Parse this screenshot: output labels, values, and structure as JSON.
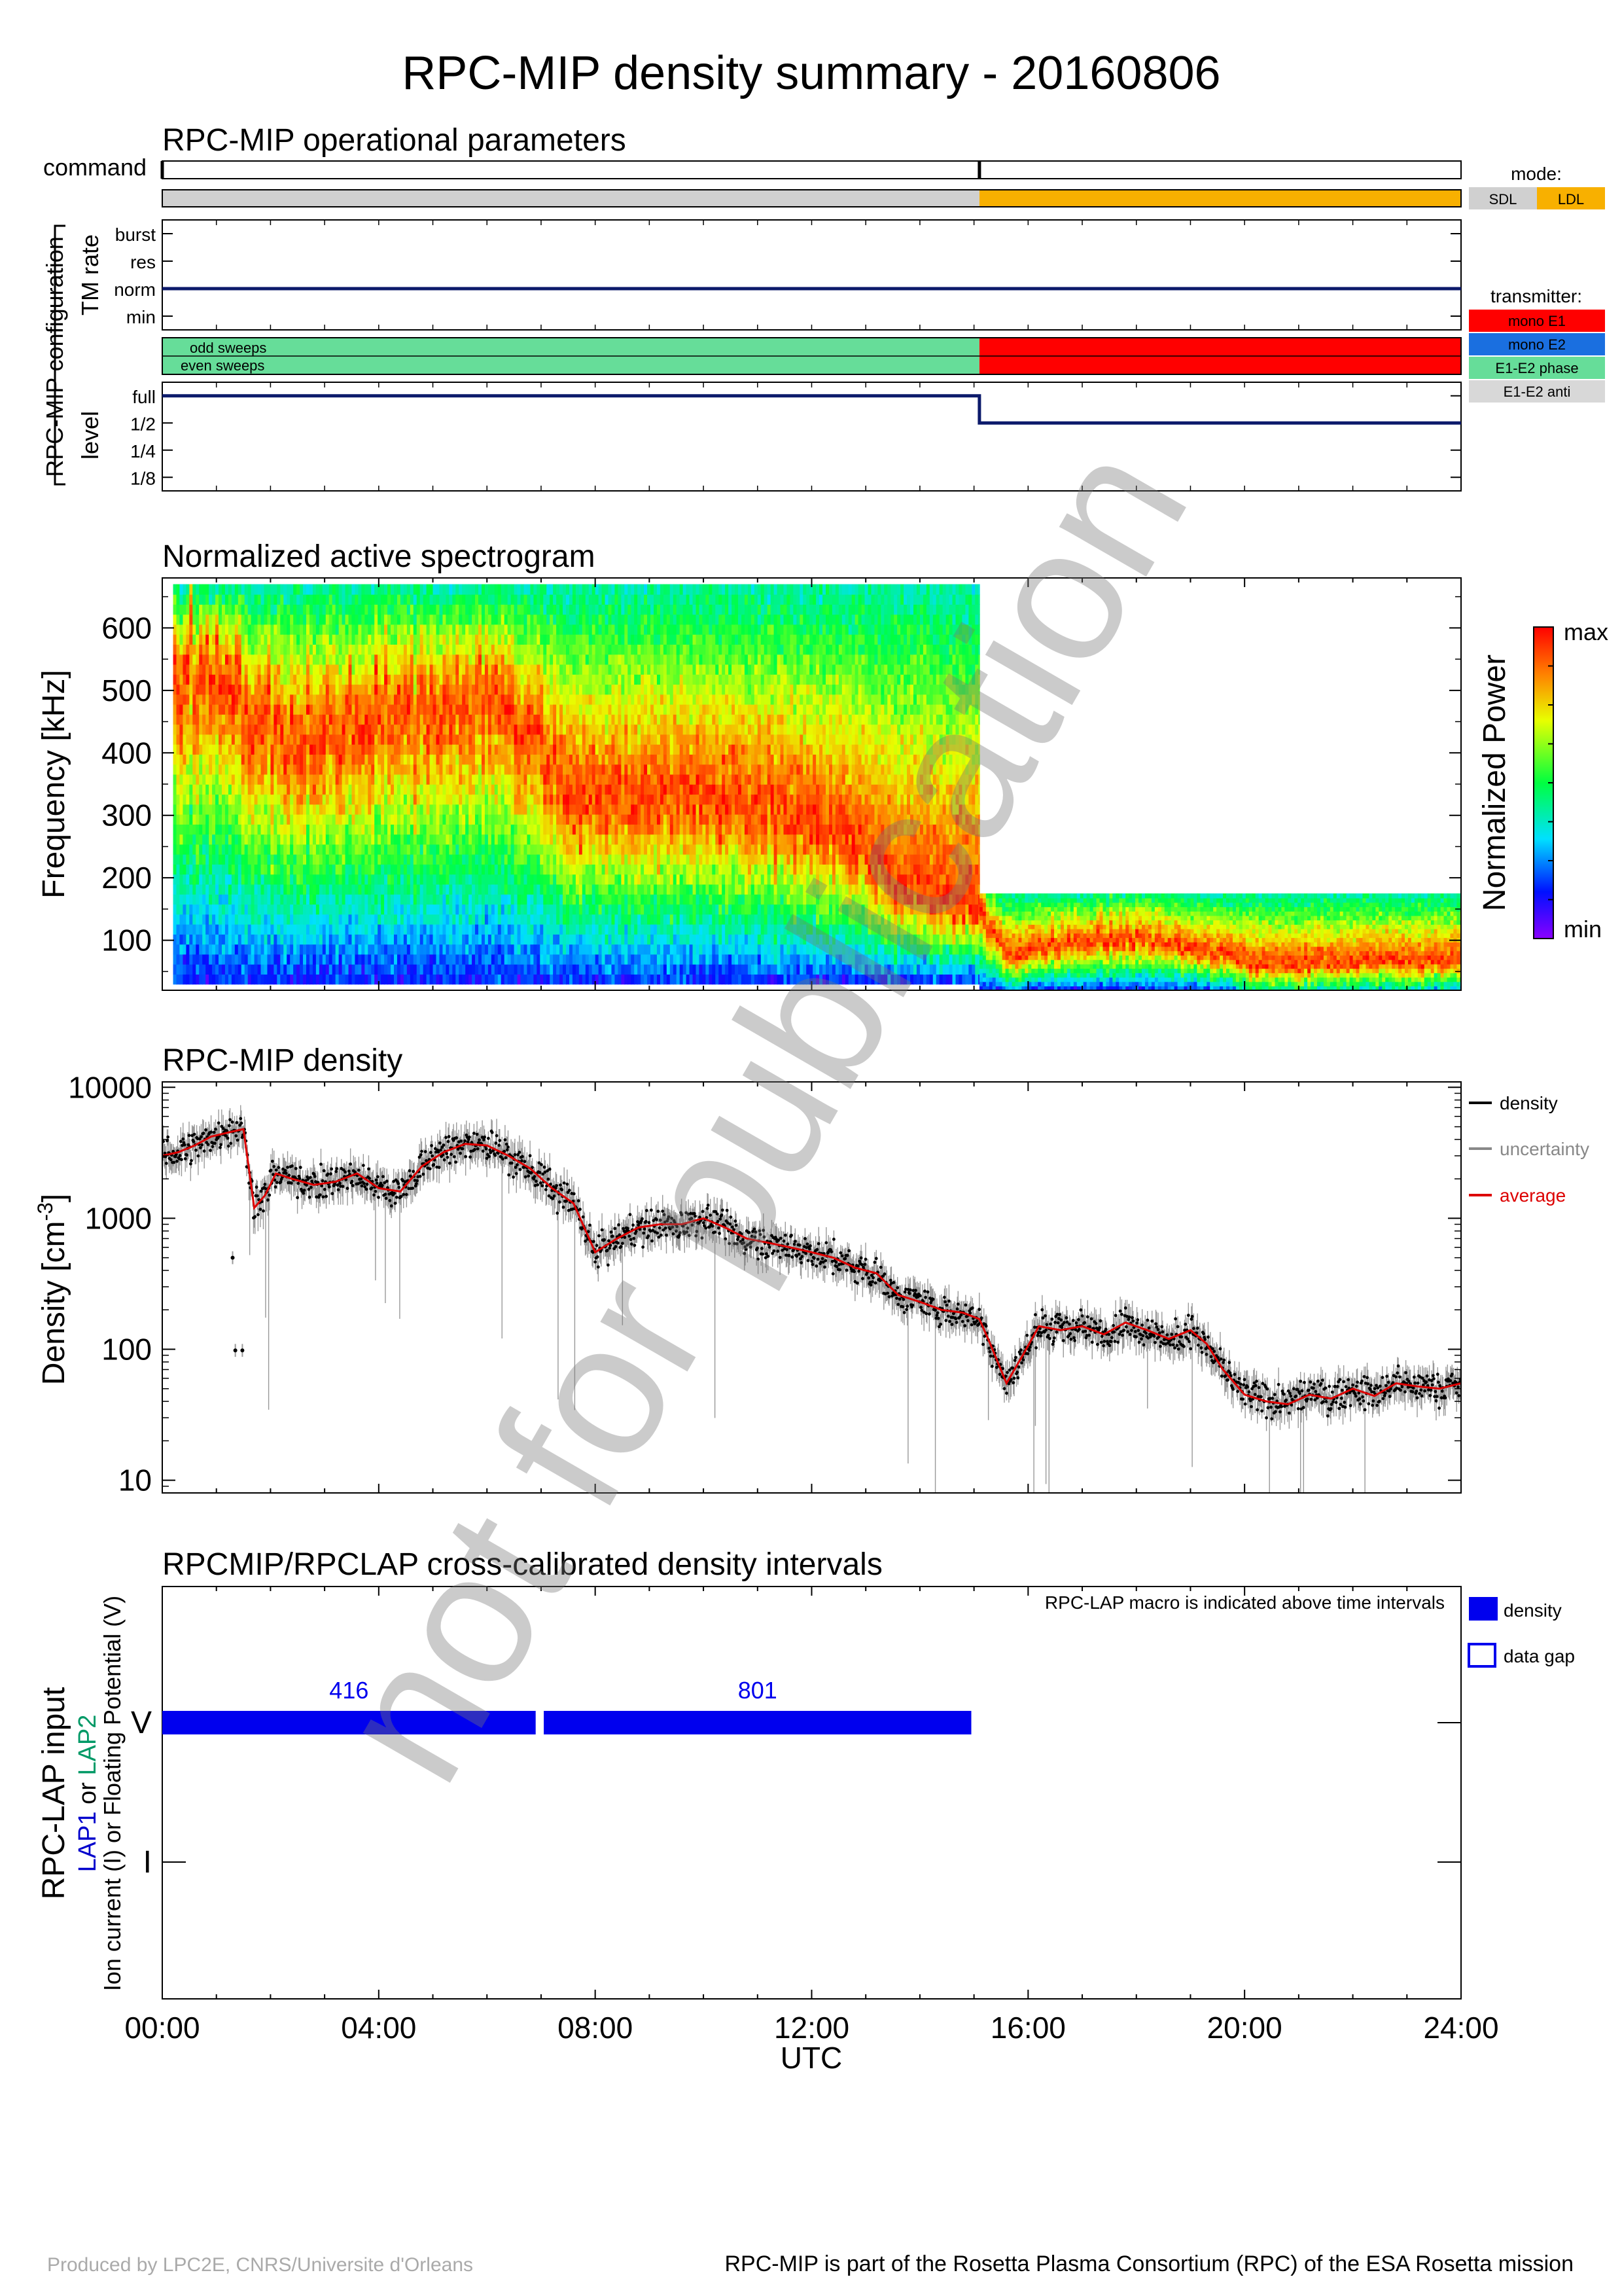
{
  "page": {
    "title": "RPC-MIP density summary - 20160806",
    "footer_left": "Produced by LPC2E, CNRS/Universite d'Orleans",
    "footer_right": "RPC-MIP is part of the Rosetta Plasma Consortium (RPC) of the ESA Rosetta mission",
    "watermark": "not for publication"
  },
  "time_axis": {
    "ticks": [
      "00:00",
      "04:00",
      "08:00",
      "12:00",
      "16:00",
      "20:00",
      "24:00"
    ],
    "label": "UTC",
    "range_hours": [
      0,
      24
    ]
  },
  "colors": {
    "navy": "#0c1a6b",
    "sdl": "#d0d0d0",
    "ldl": "#f8b000",
    "mono_e1": "#ff0000",
    "mono_e2": "#1a6fe0",
    "e1e2_phase": "#66dd99",
    "e1e2_anti": "#d8d8d8",
    "density_bar": "#0000ee",
    "average": "#dd0000",
    "uncertainty": "#888888",
    "lap1": "#0000cc",
    "lap2": "#009966"
  },
  "chart_data": [
    {
      "id": "operational",
      "type": "timeline",
      "title": "RPC-MIP operational parameters",
      "group_label": "RPC-MIP configuration",
      "command": {
        "label": "command",
        "change_times_hours": [
          0,
          15.1
        ]
      },
      "mode": {
        "legend_title": "mode:",
        "states": [
          "SDL",
          "LDL"
        ],
        "segments": [
          {
            "start": 0,
            "end": 15.1,
            "state": "SDL"
          },
          {
            "start": 15.1,
            "end": 24,
            "state": "LDL"
          }
        ]
      },
      "tm_rate": {
        "label": "TM rate",
        "levels": [
          "burst",
          "res",
          "norm",
          "min"
        ],
        "segments": [
          {
            "start": 0,
            "end": 24,
            "level": "norm"
          }
        ]
      },
      "transmitter": {
        "legend_title": "transmitter:",
        "states": [
          "mono E1",
          "mono E2",
          "E1-E2 phase",
          "E1-E2 anti"
        ],
        "rows": [
          "odd sweeps",
          "even sweeps"
        ],
        "segments": [
          {
            "start": 0,
            "end": 15.1,
            "state": "E1-E2 phase"
          },
          {
            "start": 15.1,
            "end": 24,
            "state": "mono E1"
          }
        ]
      },
      "level": {
        "label": "level",
        "levels": [
          "full",
          "1/2",
          "1/4",
          "1/8"
        ],
        "segments": [
          {
            "start": 0,
            "end": 15.1,
            "level": "full"
          },
          {
            "start": 15.1,
            "end": 24,
            "level": "1/2"
          }
        ]
      }
    },
    {
      "id": "spectrogram",
      "type": "heatmap",
      "title": "Normalized active spectrogram",
      "ylabel": "Frequency [kHz]",
      "yticks": [
        100,
        200,
        300,
        400,
        500,
        600
      ],
      "ylim": [
        20,
        680
      ],
      "colorbar": {
        "label": "Normalized Power",
        "max_label": "max",
        "min_label": "min"
      },
      "segments": [
        {
          "start": 0.2,
          "end": 15.1,
          "fmin": 30,
          "fmax": 670
        },
        {
          "start": 15.1,
          "end": 24,
          "fmin": 20,
          "fmax": 175
        }
      ],
      "dominant_line_khz": [
        [
          0,
          560
        ],
        [
          1,
          540
        ],
        [
          1.6,
          470
        ],
        [
          2.5,
          420
        ],
        [
          3.5,
          450
        ],
        [
          4.5,
          470
        ],
        [
          6,
          480
        ],
        [
          6.8,
          430
        ],
        [
          7.5,
          330
        ],
        [
          8.5,
          320
        ],
        [
          10,
          330
        ],
        [
          11.5,
          300
        ],
        [
          12.8,
          260
        ],
        [
          13.5,
          190
        ],
        [
          14.3,
          160
        ],
        [
          15.1,
          150
        ],
        [
          15.6,
          75
        ],
        [
          16.5,
          90
        ],
        [
          17.5,
          100
        ],
        [
          18.5,
          95
        ],
        [
          19.3,
          85
        ],
        [
          20,
          65
        ],
        [
          21,
          60
        ],
        [
          22,
          65
        ],
        [
          23,
          65
        ],
        [
          24,
          70
        ]
      ]
    },
    {
      "id": "density",
      "type": "line",
      "title": "RPC-MIP density",
      "ylabel": "Density [cm",
      "ylabel_sup": "-3",
      "ylabel_end": "]",
      "yscale": "log",
      "yticks": [
        10,
        100,
        1000,
        10000
      ],
      "yticks_labels": [
        "10",
        "100",
        "1000",
        "10000"
      ],
      "ylim": [
        8,
        11000
      ],
      "legend": [
        "density",
        "uncertainty",
        "average"
      ],
      "legend_position": "right",
      "average": {
        "x": [
          0,
          0.3,
          0.6,
          0.9,
          1.2,
          1.5,
          1.7,
          1.9,
          2.1,
          2.4,
          2.8,
          3.2,
          3.6,
          4,
          4.4,
          4.8,
          5.2,
          5.6,
          6,
          6.4,
          6.8,
          7.2,
          7.6,
          8,
          8.4,
          8.8,
          9.2,
          9.6,
          10,
          10.4,
          10.8,
          11.2,
          11.6,
          12,
          12.4,
          12.8,
          13.2,
          13.6,
          14,
          14.4,
          14.8,
          15.1,
          15.3,
          15.6,
          15.9,
          16.2,
          16.6,
          17,
          17.4,
          17.8,
          18.2,
          18.6,
          19,
          19.3,
          19.6,
          20,
          20.4,
          20.8,
          21.2,
          21.6,
          22,
          22.4,
          22.8,
          23.2,
          23.6,
          24
        ],
        "y": [
          3000,
          3200,
          3600,
          4200,
          4500,
          4800,
          1200,
          1500,
          2200,
          2000,
          1800,
          1900,
          2200,
          1700,
          1600,
          2500,
          3200,
          3700,
          3600,
          3000,
          2400,
          1700,
          1300,
          550,
          700,
          850,
          900,
          900,
          1000,
          850,
          700,
          650,
          600,
          550,
          500,
          420,
          380,
          260,
          230,
          200,
          190,
          170,
          110,
          55,
          90,
          150,
          140,
          150,
          130,
          160,
          140,
          120,
          140,
          110,
          70,
          45,
          40,
          38,
          45,
          42,
          50,
          44,
          55,
          52,
          50,
          55
        ]
      },
      "outliers": [
        {
          "x": 1.3,
          "y": 500
        },
        {
          "x": 1.35,
          "y": 98
        },
        {
          "x": 1.48,
          "y": 98
        }
      ]
    },
    {
      "id": "lap_intervals",
      "type": "timeline",
      "title": "RPCMIP/RPCLAP cross-calibrated density intervals",
      "ylabel": "RPC-LAP input",
      "ylabel2_parts": [
        "LAP1",
        " or ",
        "LAP2"
      ],
      "ylabel3": "Ion current (I) or Floating Potential (V)",
      "rows": [
        "V",
        "I"
      ],
      "note": "RPC-LAP macro is indicated above time intervals",
      "legend": [
        "density",
        "data gap"
      ],
      "intervals": [
        {
          "start": 0,
          "end": 6.9,
          "row": "V",
          "macro": "416"
        },
        {
          "start": 7.05,
          "end": 14.95,
          "row": "V",
          "macro": "801"
        }
      ]
    }
  ]
}
